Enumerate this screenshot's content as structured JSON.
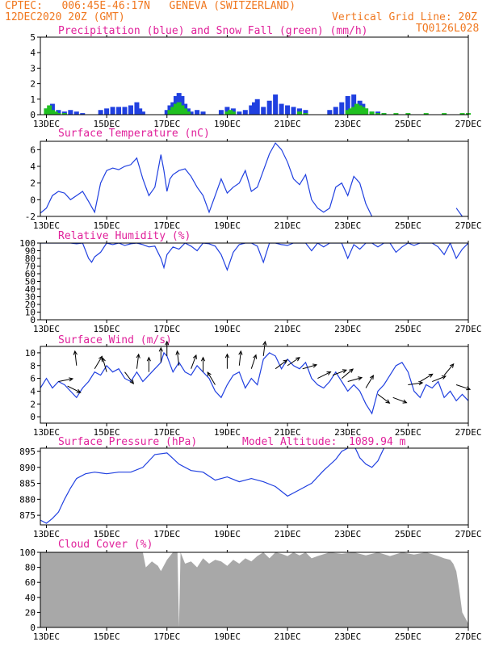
{
  "header": {
    "station_line": "CPTEC:   006:45E-46:17N   GENEVA (SWITZERLAND)",
    "date_line": "12DEC2020 20Z (GMT)",
    "grid_line": "Vertical Grid Line: 20Z",
    "code": "TQ0126L028"
  },
  "colors": {
    "header": "#f07820",
    "title": "#e0209a",
    "series_blue": "#2040e0",
    "snow_green": "#20c020",
    "cloud_gray": "#a8a8a8",
    "arrow": "#000000"
  },
  "chart_data": [
    {
      "id": "precip",
      "type": "bar",
      "title": "Precipitation (blue) and Snow Fall (green) (mm/h)",
      "ylim": [
        0,
        5
      ],
      "yticks": [
        0,
        1,
        2,
        3,
        4,
        5
      ],
      "xlim": [
        12.8,
        27.0
      ],
      "xticks": [
        13,
        15,
        17,
        19,
        21,
        23,
        25,
        27
      ],
      "xticklabels": [
        "13DEC",
        "15DEC",
        "17DEC",
        "19DEC",
        "21DEC",
        "23DEC",
        "25DEC",
        "27DEC"
      ],
      "series": [
        {
          "kind": "precip",
          "x": [
            13.0,
            13.2,
            13.4,
            13.6,
            13.8,
            14.0,
            14.2,
            14.8,
            15.0,
            15.2,
            15.4,
            15.6,
            15.8,
            16.0,
            16.1,
            16.2,
            17.0,
            17.1,
            17.2,
            17.3,
            17.4,
            17.5,
            17.6,
            17.7,
            17.8,
            18.0,
            18.2,
            18.8,
            19.0,
            19.2,
            19.4,
            19.6,
            19.8,
            19.9,
            20.0,
            20.2,
            20.4,
            20.6,
            20.8,
            21.0,
            21.2,
            21.4,
            21.6,
            22.4,
            22.6,
            22.8,
            23.0,
            23.2,
            23.4,
            23.5,
            23.6,
            23.8,
            24.0,
            24.2
          ],
          "values": [
            0.4,
            0.7,
            0.3,
            0.2,
            0.3,
            0.2,
            0.1,
            0.3,
            0.4,
            0.5,
            0.5,
            0.5,
            0.6,
            0.8,
            0.4,
            0.2,
            0.3,
            0.6,
            0.8,
            1.2,
            1.4,
            1.2,
            0.7,
            0.4,
            0.2,
            0.3,
            0.2,
            0.3,
            0.5,
            0.4,
            0.2,
            0.3,
            0.6,
            0.8,
            1.0,
            0.5,
            0.9,
            1.3,
            0.7,
            0.6,
            0.5,
            0.4,
            0.3,
            0.3,
            0.5,
            0.8,
            1.2,
            1.3,
            0.9,
            0.7,
            0.4,
            0.2,
            0.2,
            0.1
          ]
        },
        {
          "kind": "snow",
          "x": [
            13.0,
            13.1,
            13.2,
            13.3,
            13.4,
            13.6,
            17.1,
            17.2,
            17.3,
            17.4,
            17.5,
            17.6,
            17.7,
            19.0,
            19.1,
            19.2,
            21.4,
            21.6,
            23.0,
            23.1,
            23.2,
            23.3,
            23.4,
            23.5,
            23.6,
            23.8,
            24.0,
            24.2,
            24.6,
            25.0,
            25.6,
            26.2,
            26.8,
            27.0
          ],
          "values": [
            0.4,
            0.6,
            0.3,
            0.2,
            0.1,
            0.1,
            0.3,
            0.5,
            0.7,
            0.8,
            0.6,
            0.4,
            0.2,
            0.2,
            0.3,
            0.2,
            0.2,
            0.1,
            0.3,
            0.4,
            0.5,
            0.7,
            0.6,
            0.5,
            0.4,
            0.2,
            0.1,
            0.1,
            0.1,
            0.1,
            0.1,
            0.1,
            0.1,
            0.1
          ]
        }
      ]
    },
    {
      "id": "temp",
      "type": "line",
      "title": "Surface Temperature (nC)",
      "ylim": [
        -2,
        7
      ],
      "yticks": [
        -2,
        0,
        2,
        4,
        6
      ],
      "xlim": [
        12.8,
        27.0
      ],
      "xticks": [
        13,
        15,
        17,
        19,
        21,
        23,
        25,
        27
      ],
      "xticklabels": [
        "13DEC",
        "15DEC",
        "17DEC",
        "19DEC",
        "21DEC",
        "23DEC",
        "25DEC",
        "27DEC"
      ],
      "x": [
        12.8,
        13.0,
        13.2,
        13.4,
        13.6,
        13.8,
        14.0,
        14.2,
        14.4,
        14.6,
        14.8,
        15.0,
        15.2,
        15.4,
        15.6,
        15.8,
        16.0,
        16.2,
        16.4,
        16.6,
        16.8,
        16.9,
        17.0,
        17.1,
        17.2,
        17.4,
        17.6,
        17.8,
        18.0,
        18.2,
        18.4,
        18.6,
        18.8,
        19.0,
        19.2,
        19.4,
        19.6,
        19.8,
        20.0,
        20.2,
        20.4,
        20.6,
        20.8,
        21.0,
        21.2,
        21.4,
        21.6,
        21.8,
        22.0,
        22.2,
        22.4,
        22.6,
        22.8,
        23.0,
        23.2,
        23.4,
        23.6,
        23.8
      ],
      "y": [
        -1.6,
        -1.0,
        0.5,
        1.0,
        0.8,
        0.0,
        0.5,
        1.0,
        -0.2,
        -1.5,
        2.0,
        3.5,
        3.8,
        3.6,
        4.0,
        4.2,
        5.0,
        2.5,
        0.5,
        1.5,
        5.4,
        3.5,
        1.0,
        2.5,
        3.0,
        3.5,
        3.7,
        2.8,
        1.5,
        0.5,
        -1.5,
        0.5,
        2.5,
        0.8,
        1.5,
        2.0,
        3.5,
        1.0,
        1.5,
        3.5,
        5.5,
        6.8,
        6.0,
        4.5,
        2.5,
        1.8,
        3.0,
        0.0,
        -1.0,
        -1.5,
        -1.0,
        1.5,
        2.0,
        0.5,
        2.8,
        2.0,
        -0.5,
        -2.0
      ],
      "x2": [
        26.6,
        26.7,
        26.8
      ],
      "y2": [
        -1.0,
        -1.5,
        -2.0
      ]
    },
    {
      "id": "rh",
      "type": "line",
      "title": "Relative Humidity (%)",
      "ylim": [
        0,
        100
      ],
      "yticks": [
        0,
        10,
        20,
        30,
        40,
        50,
        60,
        70,
        80,
        90,
        100
      ],
      "xlim": [
        12.8,
        27.0
      ],
      "xticks": [
        13,
        15,
        17,
        19,
        21,
        23,
        25,
        27
      ],
      "xticklabels": [
        "13DEC",
        "15DEC",
        "17DEC",
        "19DEC",
        "21DEC",
        "23DEC",
        "25DEC",
        "27DEC"
      ],
      "x": [
        12.8,
        13.0,
        13.2,
        13.4,
        13.6,
        13.8,
        14.0,
        14.2,
        14.4,
        14.5,
        14.6,
        14.8,
        15.0,
        15.2,
        15.4,
        15.6,
        15.8,
        16.0,
        16.2,
        16.4,
        16.6,
        16.8,
        16.9,
        17.0,
        17.2,
        17.4,
        17.6,
        17.8,
        18.0,
        18.2,
        18.4,
        18.6,
        18.8,
        19.0,
        19.2,
        19.4,
        19.6,
        19.8,
        20.0,
        20.2,
        20.4,
        20.6,
        20.8,
        21.0,
        21.2,
        21.4,
        21.6,
        21.8,
        22.0,
        22.2,
        22.4,
        22.6,
        22.8,
        23.0,
        23.2,
        23.4,
        23.6,
        23.8,
        24.0,
        24.2,
        24.4,
        24.6,
        24.8,
        25.0,
        25.2,
        25.4,
        25.6,
        25.8,
        26.0,
        26.2,
        26.4,
        26.6,
        26.8,
        27.0
      ],
      "y": [
        100,
        100,
        100,
        100,
        100,
        100,
        99,
        100,
        80,
        75,
        82,
        88,
        100,
        98,
        100,
        97,
        99,
        100,
        98,
        95,
        96,
        80,
        68,
        85,
        95,
        92,
        100,
        96,
        90,
        100,
        99,
        96,
        85,
        65,
        88,
        98,
        100,
        100,
        96,
        75,
        100,
        100,
        98,
        97,
        100,
        100,
        100,
        90,
        100,
        95,
        100,
        100,
        100,
        80,
        98,
        92,
        100,
        100,
        95,
        100,
        100,
        88,
        95,
        100,
        97,
        100,
        100,
        100,
        95,
        85,
        100,
        80,
        92,
        100
      ]
    },
    {
      "id": "wind",
      "type": "line",
      "title": "Surface Wind (m/s)",
      "ylim": [
        -1,
        11
      ],
      "yticks": [
        0,
        2,
        4,
        6,
        8,
        10
      ],
      "xlim": [
        12.8,
        27.0
      ],
      "xticks": [
        13,
        15,
        17,
        19,
        21,
        23,
        25,
        27
      ],
      "xticklabels": [
        "13DEC",
        "15DEC",
        "17DEC",
        "19DEC",
        "21DEC",
        "23DEC",
        "25DEC",
        "27DEC"
      ],
      "x": [
        12.8,
        13.0,
        13.2,
        13.4,
        13.6,
        13.8,
        14.0,
        14.2,
        14.4,
        14.6,
        14.8,
        15.0,
        15.2,
        15.4,
        15.6,
        15.8,
        16.0,
        16.2,
        16.4,
        16.6,
        16.8,
        16.9,
        17.0,
        17.2,
        17.4,
        17.6,
        17.8,
        18.0,
        18.2,
        18.4,
        18.6,
        18.8,
        19.0,
        19.2,
        19.4,
        19.6,
        19.8,
        20.0,
        20.2,
        20.4,
        20.6,
        20.8,
        21.0,
        21.2,
        21.4,
        21.6,
        21.8,
        22.0,
        22.2,
        22.4,
        22.6,
        22.8,
        23.0,
        23.2,
        23.4,
        23.6,
        23.8,
        24.0,
        24.2,
        24.4,
        24.6,
        24.8,
        25.0,
        25.2,
        25.4,
        25.6,
        25.8,
        26.0,
        26.2,
        26.4,
        26.6,
        26.8,
        27.0
      ],
      "y": [
        4.5,
        6.0,
        4.5,
        5.5,
        5.0,
        4.0,
        3.0,
        4.5,
        5.5,
        7.0,
        6.5,
        8.0,
        7.0,
        7.5,
        6.0,
        5.5,
        7.0,
        5.5,
        6.5,
        7.5,
        8.5,
        10.0,
        9.5,
        7.0,
        8.5,
        7.0,
        6.5,
        8.0,
        7.0,
        6.0,
        4.0,
        3.0,
        5.0,
        6.5,
        7.0,
        4.5,
        6.0,
        5.0,
        9.0,
        10.0,
        9.5,
        7.5,
        9.0,
        8.0,
        7.5,
        8.5,
        6.0,
        5.0,
        4.5,
        5.5,
        7.0,
        5.5,
        4.0,
        5.0,
        4.0,
        2.0,
        0.5,
        4.0,
        5.0,
        6.5,
        8.0,
        8.5,
        7.0,
        4.0,
        3.0,
        5.0,
        4.5,
        5.5,
        3.0,
        4.0,
        2.5,
        3.5,
        2.5
      ]
    },
    {
      "id": "pressure",
      "type": "line",
      "title": "Surface Pressure (hPa)",
      "ylim": [
        872,
        896
      ],
      "yticks": [
        875,
        880,
        885,
        890,
        895
      ],
      "xlim": [
        12.8,
        27.0
      ],
      "xticks": [
        13,
        15,
        17,
        19,
        21,
        23,
        25,
        27
      ],
      "xticklabels": [
        "13DEC",
        "15DEC",
        "17DEC",
        "19DEC",
        "21DEC",
        "23DEC",
        "25DEC",
        "27DEC"
      ],
      "x": [
        12.8,
        13.0,
        13.2,
        13.4,
        13.6,
        13.8,
        14.0,
        14.3,
        14.6,
        15.0,
        15.4,
        15.8,
        16.2,
        16.6,
        17.0,
        17.4,
        17.8,
        18.2,
        18.6,
        19.0,
        19.4,
        19.8,
        20.2,
        20.6,
        21.0,
        21.4,
        21.8,
        22.2,
        22.6,
        22.8,
        23.0,
        23.2,
        23.4,
        23.6,
        23.8,
        24.0,
        24.2
      ],
      "y": [
        873.5,
        872.5,
        874.0,
        876.0,
        880.0,
        883.5,
        886.5,
        888.0,
        888.5,
        888.0,
        888.5,
        888.5,
        890.0,
        894.0,
        894.5,
        891.0,
        889.0,
        888.5,
        886.0,
        887.0,
        885.5,
        886.5,
        885.5,
        884.0,
        881.0,
        883.0,
        885.0,
        889.0,
        892.5,
        895.0,
        896.0,
        897.0,
        893.0,
        891.0,
        890.0,
        892.0,
        896.0
      ],
      "annotation_label": "Model Altitude:",
      "annotation_value": "1089.94 m"
    },
    {
      "id": "cloud",
      "type": "area",
      "title": "Cloud Cover (%)",
      "ylim": [
        0,
        100
      ],
      "yticks": [
        0,
        20,
        40,
        60,
        80,
        100
      ],
      "xlim": [
        12.8,
        27.0
      ],
      "xticks": [
        13,
        15,
        17,
        19,
        21,
        23,
        25,
        27
      ],
      "xticklabels": [
        "13DEC",
        "15DEC",
        "17DEC",
        "19DEC",
        "21DEC",
        "23DEC",
        "25DEC",
        "27DEC"
      ],
      "x": [
        12.8,
        13.0,
        13.4,
        13.8,
        14.2,
        14.6,
        15.0,
        15.4,
        15.8,
        16.0,
        16.2,
        16.3,
        16.5,
        16.7,
        16.8,
        17.0,
        17.2,
        17.35,
        17.4,
        17.45,
        17.6,
        17.8,
        18.0,
        18.2,
        18.4,
        18.6,
        18.8,
        19.0,
        19.2,
        19.4,
        19.6,
        19.8,
        20.0,
        20.2,
        20.4,
        20.6,
        20.8,
        21.0,
        21.2,
        21.4,
        21.6,
        21.8,
        22.0,
        22.4,
        22.8,
        23.2,
        23.6,
        24.0,
        24.4,
        24.8,
        25.2,
        25.6,
        26.0,
        26.2,
        26.4,
        26.5,
        26.6,
        26.7,
        26.8,
        27.0
      ],
      "y": [
        100,
        100,
        100,
        100,
        100,
        100,
        100,
        100,
        100,
        100,
        100,
        80,
        88,
        82,
        75,
        90,
        100,
        100,
        0,
        100,
        85,
        88,
        80,
        92,
        85,
        90,
        88,
        82,
        90,
        85,
        92,
        88,
        95,
        100,
        92,
        100,
        98,
        95,
        100,
        96,
        100,
        92,
        95,
        100,
        98,
        100,
        96,
        100,
        95,
        100,
        97,
        100,
        95,
        92,
        90,
        85,
        75,
        50,
        20,
        5
      ]
    }
  ]
}
